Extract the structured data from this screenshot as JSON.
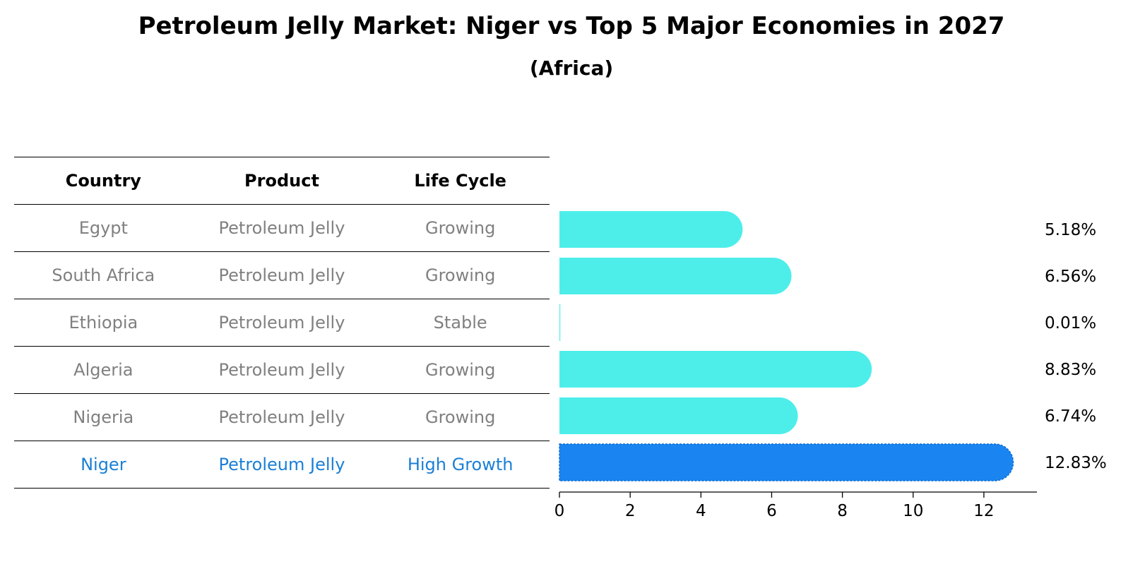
{
  "title": "Petroleum Jelly Market: Niger vs Top 5 Major Economies in 2027",
  "subtitle": "(Africa)",
  "colors": {
    "bar": "#4deeea",
    "highlight_bar": "#1a85f0",
    "highlight_text": "#1a7fd6",
    "muted_text": "#808080"
  },
  "table": {
    "headers": [
      "Country",
      "Product",
      "Life Cycle"
    ],
    "rows": [
      [
        "Egypt",
        "Petroleum Jelly",
        "Growing"
      ],
      [
        "South Africa",
        "Petroleum Jelly",
        "Growing"
      ],
      [
        "Ethiopia",
        "Petroleum Jelly",
        "Stable"
      ],
      [
        "Algeria",
        "Petroleum Jelly",
        "Growing"
      ],
      [
        "Nigeria",
        "Petroleum Jelly",
        "Growing"
      ],
      [
        "Niger",
        "Petroleum Jelly",
        "High Growth"
      ]
    ]
  },
  "chart_data": {
    "type": "bar",
    "orientation": "horizontal",
    "categories": [
      "Egypt",
      "South Africa",
      "Ethiopia",
      "Algeria",
      "Nigeria",
      "Niger"
    ],
    "values": [
      5.18,
      6.56,
      0.01,
      8.83,
      6.74,
      12.83
    ],
    "value_labels": [
      "5.18%",
      "6.56%",
      "0.01%",
      "8.83%",
      "6.74%",
      "12.83%"
    ],
    "highlight": "Niger",
    "xlim": [
      0,
      13.5
    ],
    "xticks": [
      0,
      2,
      4,
      6,
      8,
      10,
      12
    ],
    "xtick_labels": [
      "0",
      "2",
      "4",
      "6",
      "8",
      "10",
      "12"
    ],
    "xlabel": "",
    "ylabel": "",
    "grid": false
  }
}
